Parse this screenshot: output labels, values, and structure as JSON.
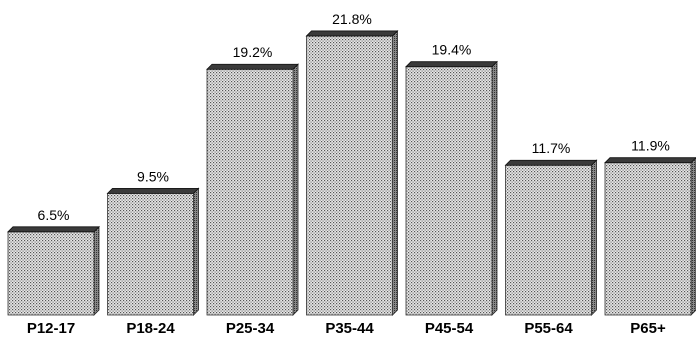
{
  "chart_data": {
    "type": "bar",
    "categories": [
      "P12-17",
      "P18-24",
      "P25-34",
      "P35-44",
      "P45-54",
      "P55-64",
      "P65+"
    ],
    "values": [
      6.5,
      9.5,
      19.2,
      21.8,
      19.4,
      11.7,
      11.9
    ],
    "value_labels": [
      "6.5%",
      "9.5%",
      "19.2%",
      "21.8%",
      "19.4%",
      "11.7%",
      "11.9%"
    ],
    "title": "",
    "xlabel": "",
    "ylabel": "",
    "ylim": [
      0,
      22
    ],
    "grid": false,
    "legend": "none",
    "bar_style": "3d-stippled",
    "colors": {
      "bar_face": "#c8c8c8",
      "bar_side": "#6e6e6e",
      "bar_top": "#3a3a3a"
    }
  }
}
